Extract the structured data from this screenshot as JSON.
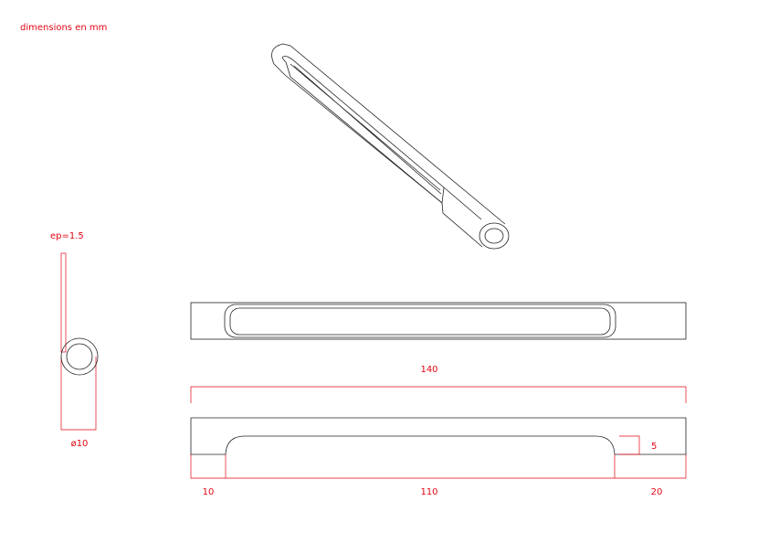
{
  "header": {
    "note": "dimensions en mm"
  },
  "side_view": {
    "thickness": "ep=1.5",
    "diameter": "ø10"
  },
  "front_view": {
    "total_length": "140",
    "depth": "5",
    "left_end": "10",
    "grip": "110",
    "right_end": "20"
  }
}
